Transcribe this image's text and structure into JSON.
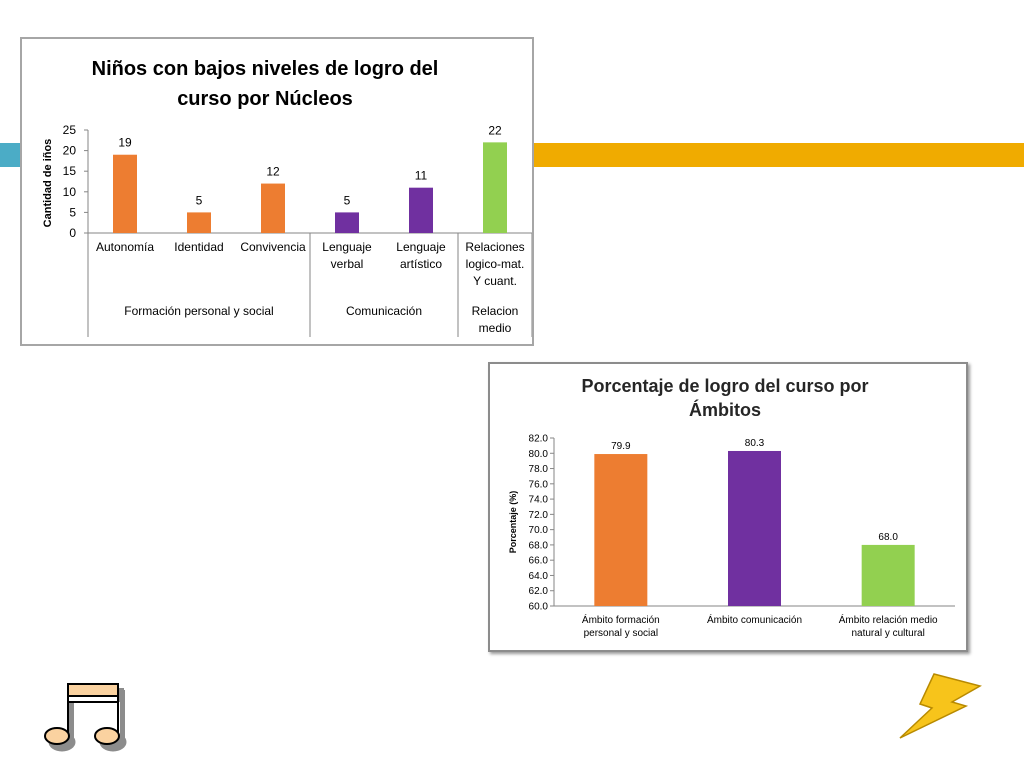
{
  "colors": {
    "orange": "#ed7d31",
    "purple": "#7030a0",
    "green": "#92d050",
    "accent_blue": "#4bacc6",
    "accent_yellow": "#f0ab00"
  },
  "decorations": [
    "music-notes-icon",
    "lightning-bolt-icon"
  ],
  "chart_data": [
    {
      "type": "bar",
      "title_line1": "Niños con bajos niveles de logro del",
      "title_line2": "curso por Núcleos",
      "ylabel": "Cantidad de iños",
      "ylim": [
        0,
        25
      ],
      "yticks": [
        "0",
        "5",
        "10",
        "15",
        "20",
        "25"
      ],
      "categories": [
        {
          "lines": [
            "Autonomía"
          ],
          "value": 19,
          "label": "19",
          "color": "#ed7d31"
        },
        {
          "lines": [
            "Identidad"
          ],
          "value": 5,
          "label": "5",
          "color": "#ed7d31"
        },
        {
          "lines": [
            "Convivencia"
          ],
          "value": 12,
          "label": "12",
          "color": "#ed7d31"
        },
        {
          "lines": [
            "Lenguaje",
            "verbal"
          ],
          "value": 5,
          "label": "5",
          "color": "#7030a0"
        },
        {
          "lines": [
            "Lenguaje",
            "artístico"
          ],
          "value": 11,
          "label": "11",
          "color": "#7030a0"
        },
        {
          "lines": [
            "Relaciones",
            "logico-mat.",
            "Y cuant."
          ],
          "value": 22,
          "label": "22",
          "color": "#92d050"
        }
      ],
      "groups": [
        {
          "lines": [
            "Formación personal y social"
          ],
          "count": 3
        },
        {
          "lines": [
            "Comunicación"
          ],
          "count": 2
        },
        {
          "lines": [
            "Relacion",
            "medio"
          ],
          "count": 1
        }
      ]
    },
    {
      "type": "bar",
      "title_line1": "Porcentaje de logro del curso por",
      "title_line2": "Ámbitos",
      "ylabel": "Porcentaje (%)",
      "ylim": [
        60,
        82
      ],
      "yticks": [
        "60.0",
        "62.0",
        "64.0",
        "66.0",
        "68.0",
        "70.0",
        "72.0",
        "74.0",
        "76.0",
        "78.0",
        "80.0",
        "82.0"
      ],
      "categories": [
        {
          "lines": [
            "Ámbito formación",
            "personal y social"
          ],
          "value": 79.9,
          "label": "79.9",
          "color": "#ed7d31"
        },
        {
          "lines": [
            "Ámbito comunicación"
          ],
          "value": 80.3,
          "label": "80.3",
          "color": "#7030a0"
        },
        {
          "lines": [
            "Ámbito relación medio",
            "natural y cultural"
          ],
          "value": 68.0,
          "label": "68.0",
          "color": "#92d050"
        }
      ]
    }
  ]
}
